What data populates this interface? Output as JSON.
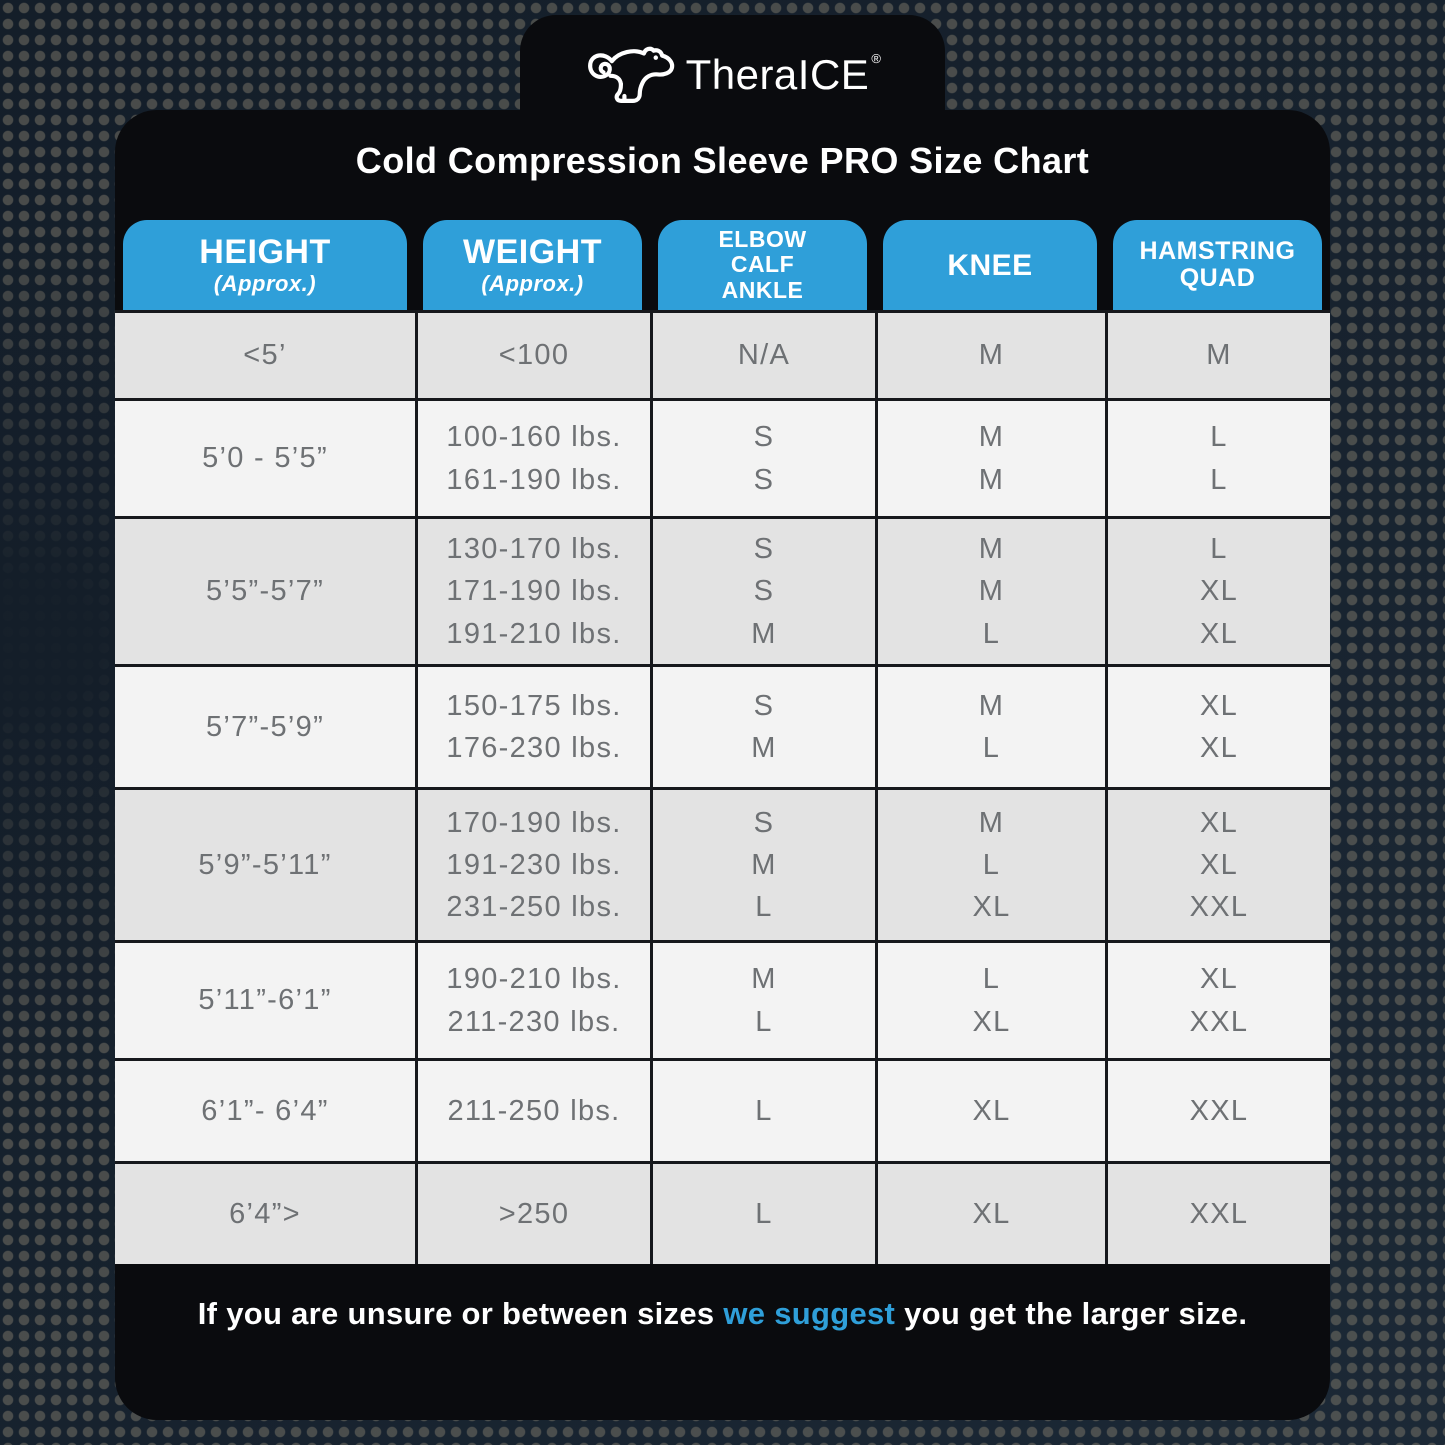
{
  "brand": {
    "name": "TheraICE",
    "reg": "®",
    "logo_icon": "polar-bear-icon"
  },
  "colors": {
    "accent_blue": "#2f9fd9",
    "card_background": "#0a0b0e",
    "page_background": "#17222e",
    "row_light": "#f3f3f3",
    "row_dark": "#e3e3e3",
    "cell_text": "#6e7174"
  },
  "chart_data": {
    "type": "table",
    "title": "Cold Compression Sleeve PRO Size Chart",
    "columns": [
      {
        "id": "height",
        "lines": [
          "HEIGHT"
        ],
        "sub": "(Approx.)"
      },
      {
        "id": "weight",
        "lines": [
          "WEIGHT"
        ],
        "sub": "(Approx.)"
      },
      {
        "id": "elbow-calf-ankle",
        "lines": [
          "ELBOW",
          "CALF",
          "ANKLE"
        ]
      },
      {
        "id": "knee",
        "lines": [
          "KNEE"
        ]
      },
      {
        "id": "hamstring-quad",
        "lines": [
          "HAMSTRING",
          "QUAD"
        ]
      }
    ],
    "rows": [
      {
        "cells": [
          [
            "<5’"
          ],
          [
            "<100"
          ],
          [
            "N/A"
          ],
          [
            "M"
          ],
          [
            "M"
          ]
        ]
      },
      {
        "cells": [
          [
            "5’0 - 5’5”"
          ],
          [
            "100-160 lbs.",
            "161-190 lbs."
          ],
          [
            "S",
            "S"
          ],
          [
            "M",
            "M"
          ],
          [
            "L",
            "L"
          ]
        ]
      },
      {
        "cells": [
          [
            "5’5”-5’7”"
          ],
          [
            "130-170 lbs.",
            "171-190 lbs.",
            "191-210 lbs."
          ],
          [
            "S",
            "S",
            "M"
          ],
          [
            "M",
            "M",
            "L"
          ],
          [
            "L",
            "XL",
            "XL"
          ]
        ]
      },
      {
        "cells": [
          [
            "5’7”-5’9”"
          ],
          [
            "150-175 lbs.",
            "176-230 lbs."
          ],
          [
            "S",
            "M"
          ],
          [
            "M",
            "L"
          ],
          [
            "XL",
            "XL"
          ]
        ]
      },
      {
        "cells": [
          [
            "5’9”-5’11”"
          ],
          [
            "170-190 lbs.",
            "191-230 lbs.",
            "231-250 lbs."
          ],
          [
            "S",
            "M",
            "L"
          ],
          [
            "M",
            "L",
            "XL"
          ],
          [
            "XL",
            "XL",
            "XXL"
          ]
        ]
      },
      {
        "cells": [
          [
            "5’11”-6’1”"
          ],
          [
            "190-210 lbs.",
            "211-230 lbs."
          ],
          [
            "M",
            "L"
          ],
          [
            "L",
            "XL"
          ],
          [
            "XL",
            "XXL"
          ]
        ]
      },
      {
        "cells": [
          [
            "6’1”- 6’4”"
          ],
          [
            "211-250 lbs."
          ],
          [
            "L"
          ],
          [
            "XL"
          ],
          [
            "XXL"
          ]
        ]
      },
      {
        "cells": [
          [
            "6’4”>"
          ],
          [
            ">250"
          ],
          [
            "L"
          ],
          [
            "XL"
          ],
          [
            "XXL"
          ]
        ]
      }
    ]
  },
  "footnote": {
    "pre": "If you are unsure or between sizes ",
    "highlight": "we suggest",
    "post": " you get the larger size."
  }
}
